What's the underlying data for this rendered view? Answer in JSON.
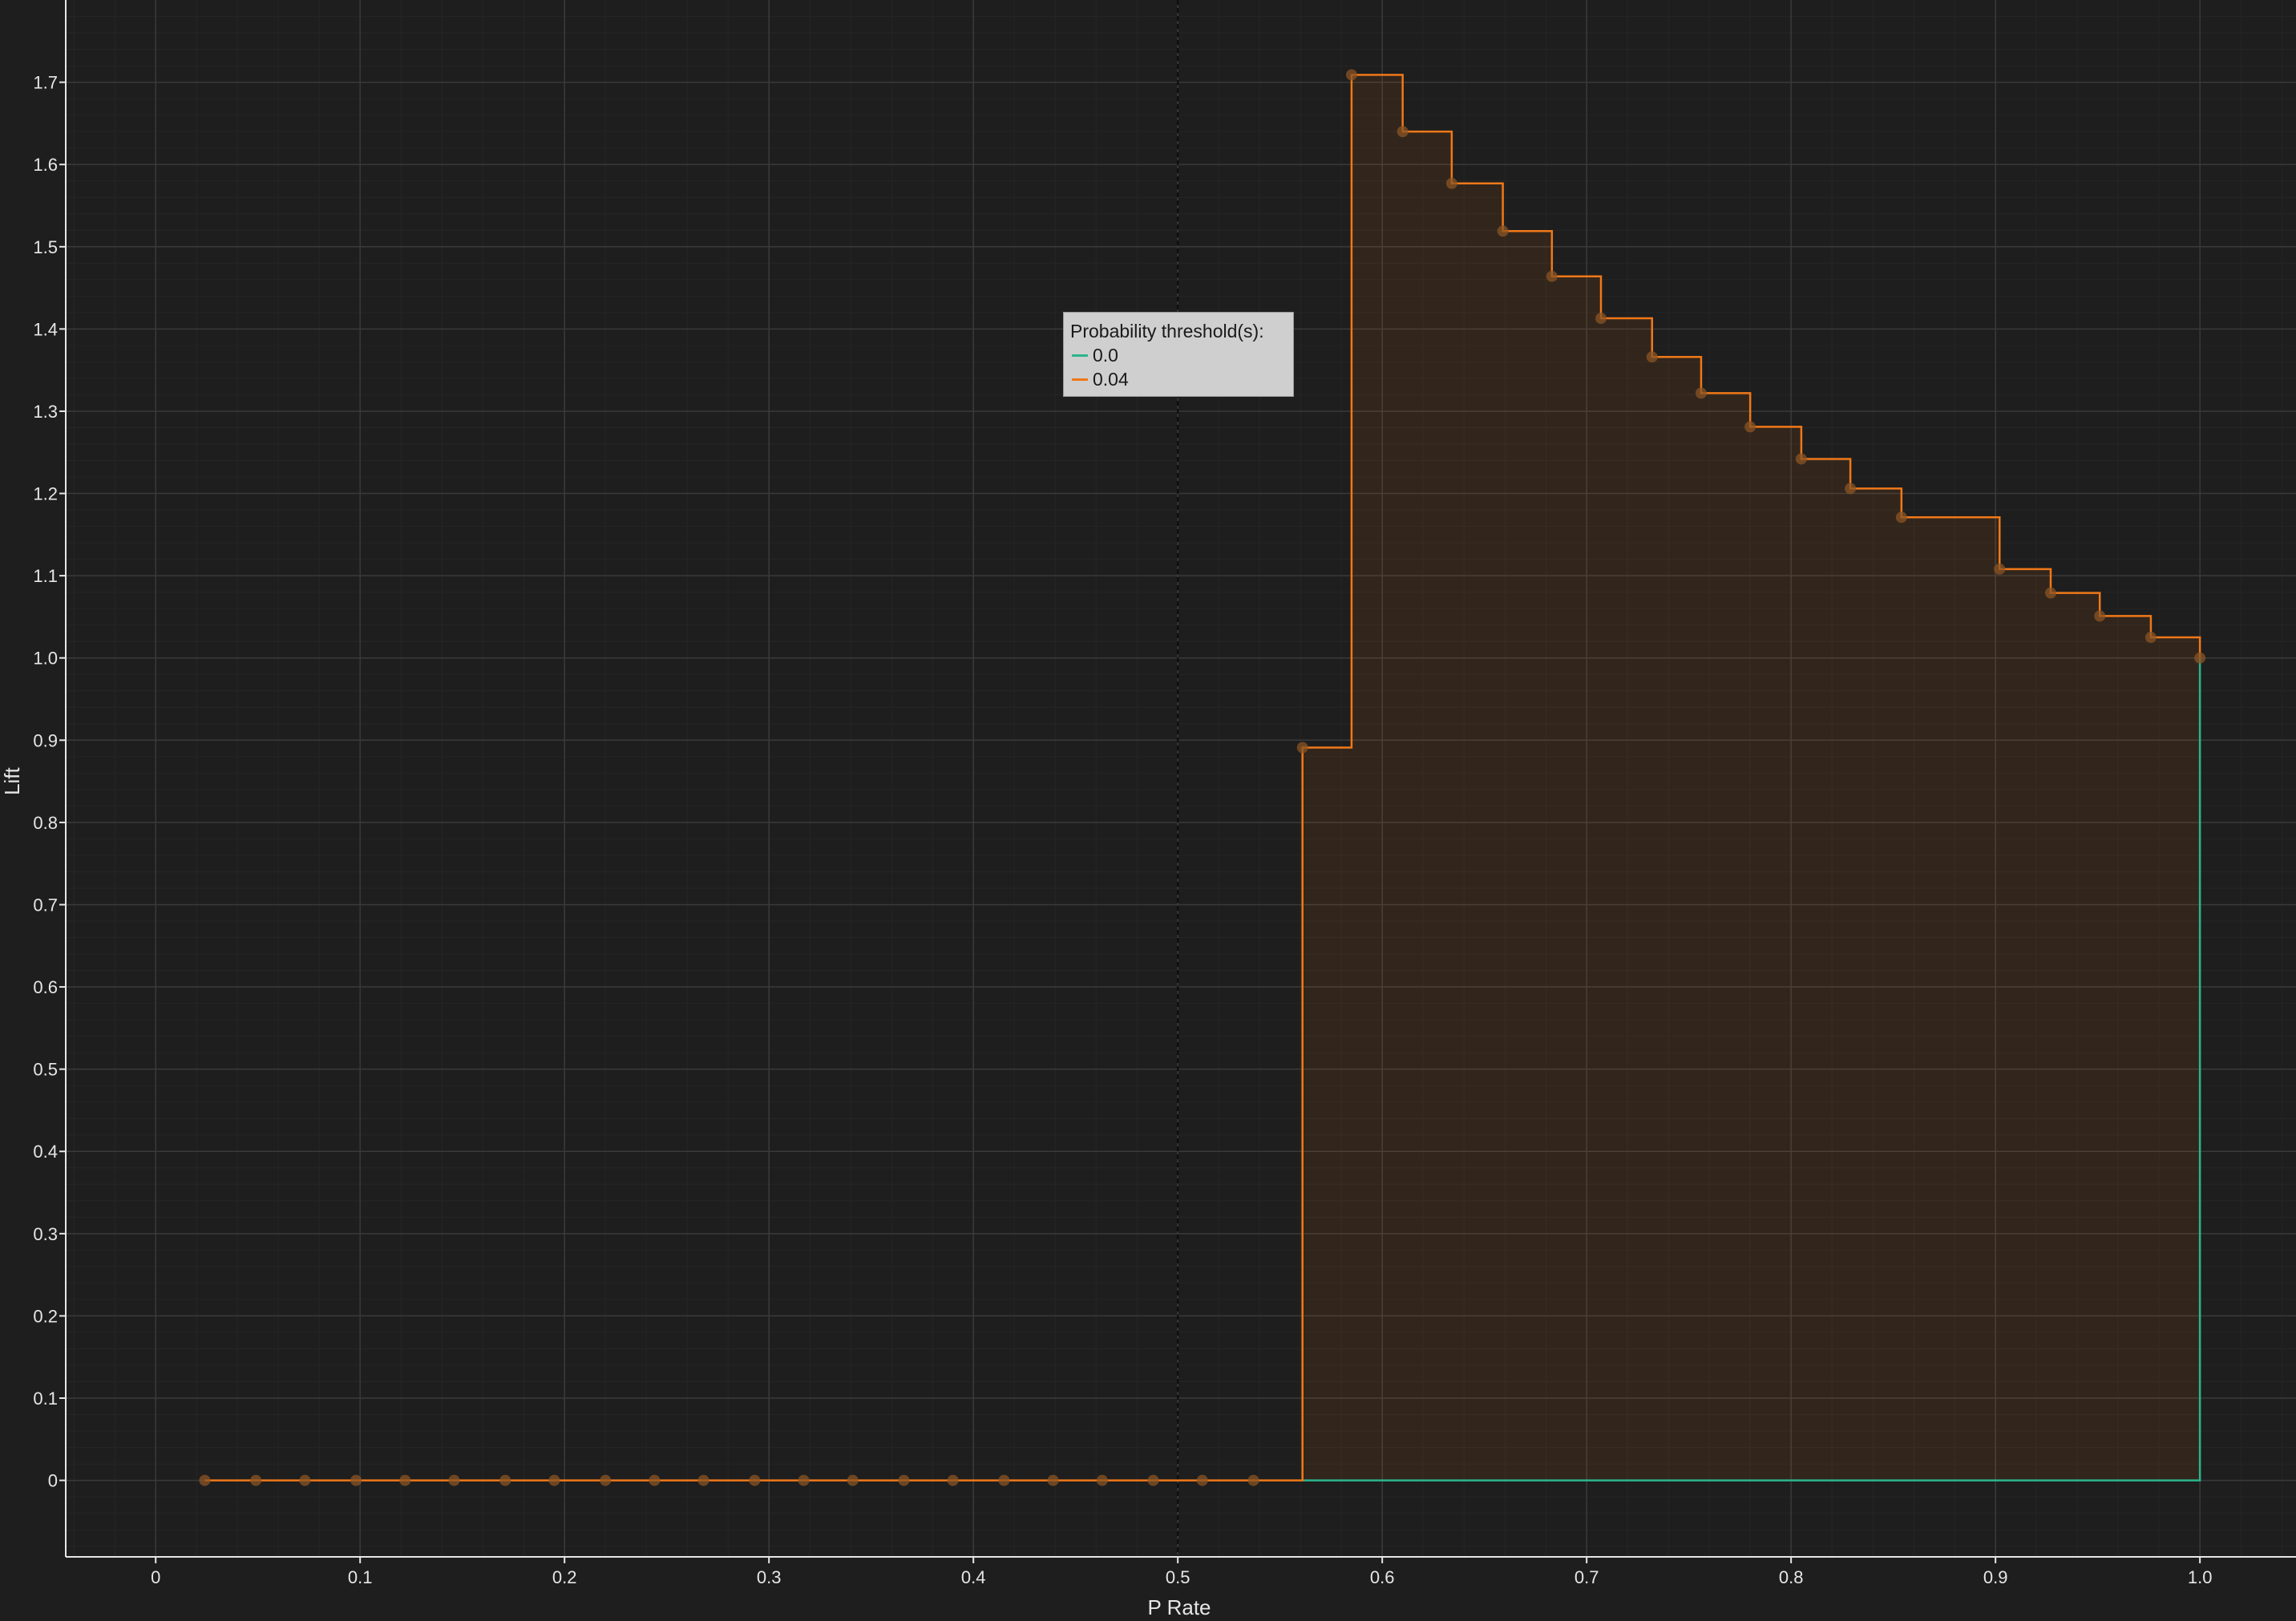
{
  "chart_data": {
    "type": "line",
    "xlabel": "P Rate",
    "ylabel": "Lift",
    "xlim": [
      -0.044,
      1.047
    ],
    "ylim": [
      -0.093,
      1.8
    ],
    "x_ticks": [
      0,
      0.1,
      0.2,
      0.3,
      0.4,
      0.5,
      0.6,
      0.7,
      0.8,
      0.9,
      1.0
    ],
    "x_tick_labels": [
      "0",
      "0.1",
      "0.2",
      "0.3",
      "0.4",
      "0.5",
      "0.6",
      "0.7",
      "0.8",
      "0.9",
      "1.0"
    ],
    "y_ticks": [
      0,
      0.1,
      0.2,
      0.3,
      0.4,
      0.5,
      0.6,
      0.7,
      0.8,
      0.9,
      1.0,
      1.1,
      1.2,
      1.3,
      1.4,
      1.5,
      1.6,
      1.7
    ],
    "y_tick_labels": [
      "0",
      "0.1",
      "0.2",
      "0.3",
      "0.4",
      "0.5",
      "0.6",
      "0.7",
      "0.8",
      "0.9",
      "1.0",
      "1.1",
      "1.2",
      "1.3",
      "1.4",
      "1.5",
      "1.6",
      "1.7"
    ],
    "vertical_reference_line": 0.5,
    "grid": true,
    "step": true,
    "legend": {
      "title": "Probability threshold(s):",
      "placement": "center"
    },
    "series": [
      {
        "name": "0.0",
        "color": "#2bb58c",
        "x": [
          0.561,
          1.0,
          1.0
        ],
        "y": [
          0,
          0,
          1.0
        ]
      },
      {
        "name": "0.04",
        "color": "#f07818",
        "fill": true,
        "x": [
          0.024,
          0.049,
          0.073,
          0.098,
          0.122,
          0.146,
          0.171,
          0.195,
          0.22,
          0.244,
          0.268,
          0.293,
          0.317,
          0.341,
          0.366,
          0.39,
          0.415,
          0.439,
          0.463,
          0.488,
          0.512,
          0.537,
          0.561,
          0.585,
          0.61,
          0.634,
          0.659,
          0.683,
          0.707,
          0.732,
          0.756,
          0.78,
          0.805,
          0.829,
          0.854,
          0.902,
          0.927,
          0.951,
          0.976,
          1.0
        ],
        "y": [
          0,
          0,
          0,
          0,
          0,
          0,
          0,
          0,
          0,
          0,
          0,
          0,
          0,
          0,
          0,
          0,
          0,
          0,
          0,
          0,
          0,
          0,
          0.891,
          1.709,
          1.64,
          1.577,
          1.519,
          1.464,
          1.413,
          1.366,
          1.322,
          1.281,
          1.242,
          1.206,
          1.171,
          1.108,
          1.079,
          1.051,
          1.025,
          1.0
        ]
      }
    ]
  }
}
